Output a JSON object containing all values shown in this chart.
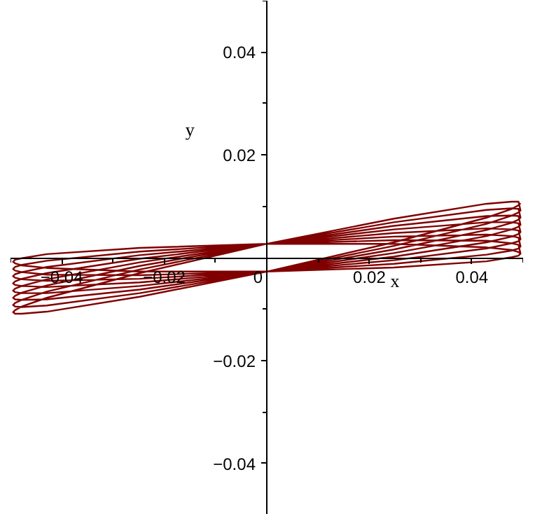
{
  "chart_data": {
    "type": "line",
    "xlabel": "x",
    "ylabel": "y",
    "xlim": [
      -0.05,
      0.05
    ],
    "ylim": [
      -0.05,
      0.05
    ],
    "xticks": [
      {
        "value": -0.05,
        "label": null
      },
      {
        "value": -0.04,
        "label": "−0.04"
      },
      {
        "value": -0.03,
        "label": null
      },
      {
        "value": -0.02,
        "label": "−0.02"
      },
      {
        "value": -0.01,
        "label": null
      },
      0,
      {
        "value": 0.01,
        "label": null
      },
      0.02,
      {
        "value": 0.03,
        "label": null
      },
      0.04,
      {
        "value": 0.05,
        "label": null
      }
    ],
    "yticks": [
      {
        "value": -0.05,
        "label": null
      },
      {
        "value": -0.04,
        "label": "−0.04"
      },
      {
        "value": -0.03,
        "label": null
      },
      {
        "value": -0.02,
        "label": "−0.02"
      },
      {
        "value": -0.01,
        "label": null
      },
      {
        "value": 0.01,
        "label": null
      },
      0.02,
      {
        "value": 0.03,
        "label": null
      },
      0.04,
      {
        "value": 0.05,
        "label": null
      }
    ],
    "grid": false,
    "series": [
      {
        "color": "#800000",
        "x": [
          0.0495,
          0.0491,
          0.0478,
          0.0429,
          0.0248,
          0,
          -0.0248,
          -0.0429,
          -0.0478,
          -0.0491,
          -0.0495,
          -0.0491,
          -0.0478,
          -0.0429,
          -0.0248,
          0,
          0.0248,
          0.0429,
          0.0478,
          0.0491,
          0.0495,
          0.0491,
          0.0478,
          0.0429,
          0.0248,
          0,
          -0.0248,
          -0.0429,
          -0.0478,
          -0.0491,
          -0.0495,
          -0.0491,
          -0.0478,
          -0.0429,
          -0.0248,
          0,
          0.0248,
          0.0429,
          0.0478,
          0.0491,
          0.0495,
          0.0491,
          0.0478,
          0.0429,
          0.0248,
          0,
          -0.0248,
          -0.0429,
          -0.0478,
          -0.0491,
          -0.0495,
          -0.0491,
          -0.0478,
          -0.0429,
          -0.0248,
          0,
          0.0248,
          0.0429,
          0.0478,
          0.0491,
          0.0495,
          0.0491,
          0.0478,
          0.0429,
          0.0248,
          0,
          -0.0248,
          -0.0429,
          -0.0478,
          -0.0491,
          -0.0495,
          -0.0491,
          -0.0478,
          -0.0429,
          -0.0248,
          0,
          0.0248,
          0.0429,
          0.0478,
          0.0491,
          0.0495,
          0.0491,
          0.0478,
          0.0429,
          0.0248,
          0,
          -0.0248,
          -0.0429,
          -0.0478,
          -0.0491,
          -0.0495,
          -0.0491,
          -0.0478,
          -0.0429,
          -0.0248,
          0,
          0.0248,
          0.0429,
          0.0478,
          0.0491,
          0.0495,
          0.0491,
          0.0478,
          0.0429,
          0.0248,
          0,
          -0.0248,
          -0.0429,
          -0.0478,
          -0.0491,
          -0.0495,
          -0.0491,
          -0.0478,
          -0.0429,
          -0.0248,
          0,
          0.0248,
          0.0429,
          0.0478,
          0.0491,
          0.0495,
          0.0491,
          0.0478,
          0.0429,
          0.0248,
          0,
          -0.0248,
          -0.0429,
          -0.0478,
          -0.0491,
          -0.0495,
          -0.0491,
          -0.0478,
          -0.0429,
          -0.0248,
          0,
          0.0248,
          0.0429,
          0.0478,
          0.0491,
          0.0495,
          0.0491,
          0.0478,
          0.0429,
          0.0248,
          0,
          -0.0248,
          -0.0429,
          -0.0478,
          -0.0491,
          -0.0495,
          -0.0491,
          -0.0478,
          -0.0429,
          -0.0248,
          0,
          0.0248,
          0.0429,
          0.0478,
          0.0491,
          0.0495
        ],
        "values": [
          0.0106,
          0.0102,
          0.0095,
          0.0078,
          0.003,
          -0.0027,
          -0.0076,
          -0.0105,
          -0.0109,
          -0.0109,
          -0.0106,
          -0.0102,
          -0.0095,
          -0.0078,
          -0.003,
          0.0027,
          0.0076,
          0.0105,
          0.0109,
          0.0109,
          0.0092,
          0.0088,
          0.0082,
          0.0066,
          0.0023,
          -0.0027,
          -0.0069,
          -0.0093,
          -0.0096,
          -0.0095,
          -0.0092,
          -0.0088,
          -0.0082,
          -0.0066,
          -0.0023,
          0.0027,
          0.0069,
          0.0093,
          0.0096,
          0.0095,
          0.0078,
          0.0074,
          0.0068,
          0.0054,
          0.0016,
          -0.0027,
          -0.0062,
          -0.0081,
          -0.0082,
          -0.0081,
          -0.0078,
          -0.0074,
          -0.0068,
          -0.0054,
          -0.0016,
          0.0027,
          0.0062,
          0.0081,
          0.0082,
          0.0081,
          0.0064,
          0.006,
          0.0055,
          0.0042,
          0.0009,
          -0.0027,
          -0.0055,
          -0.0069,
          -0.0069,
          -0.0067,
          -0.0064,
          -0.006,
          -0.0055,
          -0.0042,
          -0.0009,
          0.0027,
          0.0055,
          0.0069,
          0.0069,
          0.0067,
          0.005,
          0.0046,
          0.0041,
          0.003,
          0.0002,
          -0.0027,
          -0.0048,
          -0.0057,
          -0.0055,
          -0.0053,
          -0.005,
          -0.0046,
          -0.0041,
          -0.003,
          -0.0002,
          0.0027,
          0.0048,
          0.0057,
          0.0055,
          0.0053,
          0.0036,
          0.0032,
          0.0028,
          0.0018,
          -0.0005,
          -0.0027,
          -0.0041,
          -0.0045,
          -0.0042,
          -0.0039,
          -0.0036,
          -0.0032,
          -0.0028,
          -0.0018,
          0.0005,
          0.0027,
          0.0041,
          0.0045,
          0.0042,
          0.0039,
          0.0022,
          0.0018,
          0.0014,
          0.0006,
          -0.0012,
          -0.0027,
          -0.0034,
          -0.0033,
          -0.0028,
          -0.0025,
          -0.0022,
          -0.0018,
          -0.0014,
          -0.0006,
          0.0012,
          0.0027,
          0.0034,
          0.0033,
          0.0028,
          0.0025,
          0.0008,
          0.0004,
          0.0001,
          -0.0007,
          -0.0019,
          -0.0027,
          -0.0027,
          -0.002,
          -0.0015,
          -0.0011,
          -0.0008,
          -0.0004,
          -0.0001,
          0.0007,
          0.0019,
          0.0027,
          0.0027,
          0.002,
          0.0015,
          0.0011,
          0.0008
        ]
      }
    ]
  }
}
